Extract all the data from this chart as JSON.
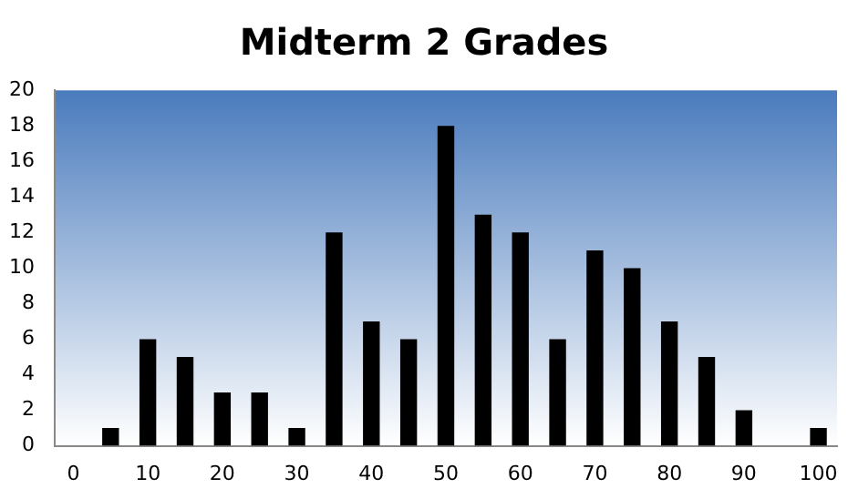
{
  "chart_data": {
    "type": "bar",
    "title": "Midterm 2 Grades",
    "categories": [
      "0",
      null,
      "10",
      null,
      "20",
      null,
      "30",
      null,
      "40",
      null,
      "50",
      null,
      "60",
      null,
      "70",
      null,
      "80",
      null,
      "90",
      null,
      "100"
    ],
    "values": [
      0,
      1,
      6,
      5,
      3,
      3,
      1,
      12,
      7,
      6,
      18,
      13,
      12,
      6,
      11,
      10,
      7,
      5,
      2,
      0,
      1
    ],
    "color": "#000000",
    "ylim": [
      0,
      20
    ],
    "yticks": [
      0,
      2,
      4,
      6,
      8,
      10,
      12,
      14,
      16,
      18,
      20
    ],
    "grid": false,
    "legend": false
  }
}
